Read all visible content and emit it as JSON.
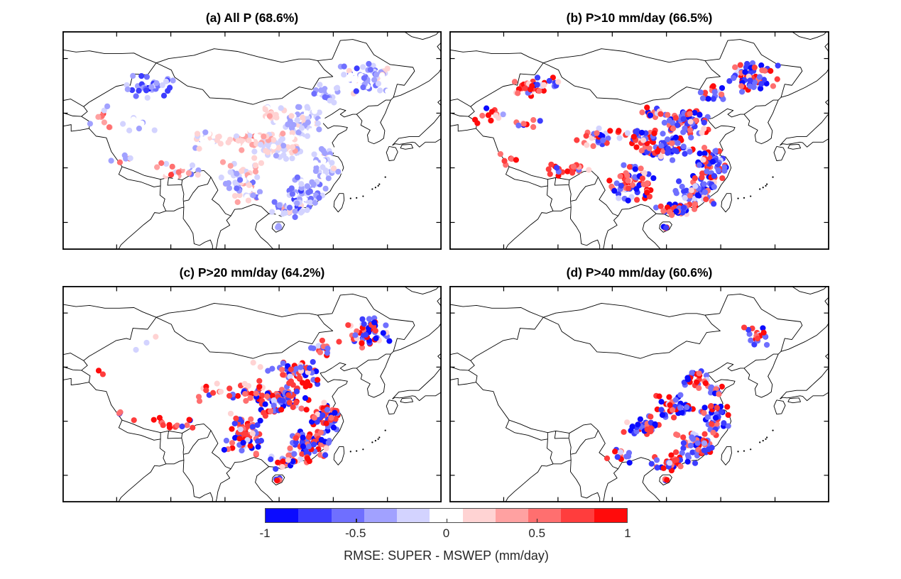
{
  "figure": {
    "background": "#ffffff",
    "frame_color": "#000000",
    "border_line_color": "#000000"
  },
  "chart_data": {
    "type": "scatter",
    "subtype": "map-scatter-2x2-grid",
    "description": "Station-wise RMSE difference (SUPER minus MSWEP) over China for four precipitation intensity classes; blue = SUPER lower RMSE, red = SUPER higher RMSE.",
    "map_extent": {
      "lon_min": 70,
      "lon_max": 140,
      "lat_min": 15,
      "lat_max": 55
    },
    "lon_ticks": [
      80,
      90,
      100,
      110,
      120,
      130
    ],
    "lat_ticks": [
      20,
      30,
      40,
      50
    ],
    "grid": false,
    "seed": 7,
    "dot_radius_px": 4.1,
    "colorbar": {
      "label": "RMSE: SUPER - MSWEP (mm/day)",
      "orientation": "horizontal",
      "range": [
        -1,
        1
      ],
      "ticks": [
        -1,
        -0.5,
        0,
        0.5,
        1
      ],
      "tick_labels": [
        "-1",
        "-0.5",
        "0",
        "0.5",
        "1"
      ],
      "notch_ticks": [
        -0.5,
        0,
        0.5
      ],
      "colors": [
        "#0b0bff",
        "#3d3dff",
        "#6f6fff",
        "#a1a1ff",
        "#d3d3ff",
        "#ffffff",
        "#ffd3d3",
        "#ffa1a1",
        "#ff6f6f",
        "#ff3d3d",
        "#ff0b0b"
      ]
    },
    "panels": [
      {
        "id": "a",
        "title": "(a) All P (68.6%)",
        "threshold": "All P",
        "agreement_pct": 68.6,
        "clusters": [
          {
            "region": "northeast",
            "lon": 126,
            "lat": 46.5,
            "rlon": 5.0,
            "rlat": 3.0,
            "n": 65,
            "mode": "uniform",
            "v": -0.3,
            "s": 0.45
          },
          {
            "region": "inner-mongolia-east",
            "lon": 118.5,
            "lat": 43.5,
            "rlon": 3.5,
            "rlat": 2.0,
            "n": 22,
            "mode": "uniform",
            "v": -0.25,
            "s": 0.35
          },
          {
            "region": "north-china",
            "lon": 114,
            "lat": 38.5,
            "rlon": 4.5,
            "rlat": 2.8,
            "n": 70,
            "mode": "uniform",
            "v": -0.15,
            "s": 0.3
          },
          {
            "region": "central",
            "lon": 110,
            "lat": 33.8,
            "rlon": 5.5,
            "rlat": 2.8,
            "n": 85,
            "mode": "uniform",
            "v": 0.0,
            "s": 0.32
          },
          {
            "region": "east-coast",
            "lon": 118.5,
            "lat": 31,
            "rlon": 3.2,
            "rlat": 3.2,
            "n": 65,
            "mode": "uniform",
            "v": -0.15,
            "s": 0.3
          },
          {
            "region": "southeast",
            "lon": 115.5,
            "lat": 25.8,
            "rlon": 4.3,
            "rlat": 3.2,
            "n": 70,
            "mode": "uniform",
            "v": -0.3,
            "s": 0.38
          },
          {
            "region": "south-coast",
            "lon": 111.5,
            "lat": 22.5,
            "rlon": 4.3,
            "rlat": 1.6,
            "n": 38,
            "mode": "uniform",
            "v": -0.25,
            "s": 0.55
          },
          {
            "region": "southwest",
            "lon": 103.5,
            "lat": 27.5,
            "rlon": 4.3,
            "rlat": 4.0,
            "n": 70,
            "mode": "uniform",
            "v": -0.05,
            "s": 0.45
          },
          {
            "region": "gansu-shaanxi",
            "lon": 104.5,
            "lat": 35.5,
            "rlon": 4.3,
            "rlat": 2.3,
            "n": 40,
            "mode": "uniform",
            "v": 0.15,
            "s": 0.35
          },
          {
            "region": "hetao",
            "lon": 107.5,
            "lat": 40,
            "rlon": 3.2,
            "rlat": 1.7,
            "n": 16,
            "mode": "uniform",
            "v": 0.1,
            "s": 0.3
          },
          {
            "region": "tibet-south",
            "lon": 91.5,
            "lat": 29.5,
            "rlon": 5.5,
            "rlat": 1.7,
            "n": 22,
            "mode": "uniform",
            "v": 0.15,
            "s": 0.65
          },
          {
            "region": "tibet-west",
            "lon": 81,
            "lat": 31.5,
            "rlon": 2.5,
            "rlat": 1.5,
            "n": 6,
            "mode": "uniform",
            "v": 0.1,
            "s": 0.5
          },
          {
            "region": "qinghai",
            "lon": 97,
            "lat": 35.5,
            "rlon": 3.8,
            "rlat": 2.3,
            "n": 26,
            "mode": "uniform",
            "v": 0.0,
            "s": 0.3
          },
          {
            "region": "xinjiang-north",
            "lon": 86,
            "lat": 44.8,
            "rlon": 5.3,
            "rlat": 2.3,
            "n": 38,
            "mode": "uniform",
            "v": -0.45,
            "s": 0.45
          },
          {
            "region": "xinjiang-west",
            "lon": 77.5,
            "lat": 39.5,
            "rlon": 3.2,
            "rlat": 2.3,
            "n": 12,
            "mode": "uniform",
            "v": 0.15,
            "s": 0.6
          },
          {
            "region": "xinjiang-south",
            "lon": 84,
            "lat": 38,
            "rlon": 4.5,
            "rlat": 1.7,
            "n": 10,
            "mode": "uniform",
            "v": -0.15,
            "s": 0.3
          },
          {
            "region": "hainan",
            "lon": 109.8,
            "lat": 19.2,
            "rlon": 0.5,
            "rlat": 0.4,
            "n": 4,
            "mode": "uniform",
            "v": -0.3,
            "s": 0.35
          }
        ]
      },
      {
        "id": "b",
        "title": "(b) P>10 mm/day (66.5%)",
        "threshold": "P>10 mm/day",
        "agreement_pct": 66.5,
        "clusters": [
          {
            "region": "northeast",
            "lon": 126,
            "lat": 46.5,
            "rlon": 5.0,
            "rlat": 3.0,
            "n": 62,
            "mode": "signed",
            "pneg": 0.55,
            "pale": 0.1
          },
          {
            "region": "inner-mongolia-east",
            "lon": 118.5,
            "lat": 43.5,
            "rlon": 3.5,
            "rlat": 2.0,
            "n": 20,
            "mode": "signed",
            "pneg": 0.45,
            "pale": 0.1
          },
          {
            "region": "north-china",
            "lon": 114,
            "lat": 38.5,
            "rlon": 4.5,
            "rlat": 2.8,
            "n": 68,
            "mode": "signed",
            "pneg": 0.6,
            "pale": 0.1
          },
          {
            "region": "central",
            "lon": 110,
            "lat": 33.8,
            "rlon": 5.5,
            "rlat": 2.8,
            "n": 80,
            "mode": "signed",
            "pneg": 0.55,
            "pale": 0.12
          },
          {
            "region": "east-coast",
            "lon": 118.5,
            "lat": 31,
            "rlon": 3.2,
            "rlat": 3.2,
            "n": 62,
            "mode": "signed",
            "pneg": 0.7,
            "pale": 0.08
          },
          {
            "region": "southeast",
            "lon": 115.5,
            "lat": 25.8,
            "rlon": 4.3,
            "rlat": 3.2,
            "n": 68,
            "mode": "signed",
            "pneg": 0.72,
            "pale": 0.08
          },
          {
            "region": "south-coast",
            "lon": 111.5,
            "lat": 22.5,
            "rlon": 4.3,
            "rlat": 1.6,
            "n": 36,
            "mode": "signed",
            "pneg": 0.6,
            "pale": 0.08
          },
          {
            "region": "southwest",
            "lon": 103.5,
            "lat": 27.5,
            "rlon": 4.3,
            "rlat": 4.0,
            "n": 68,
            "mode": "signed",
            "pneg": 0.48,
            "pale": 0.1
          },
          {
            "region": "gansu-shaanxi",
            "lon": 104.5,
            "lat": 35.5,
            "rlon": 4.3,
            "rlat": 2.3,
            "n": 38,
            "mode": "signed",
            "pneg": 0.35,
            "pale": 0.12
          },
          {
            "region": "hetao",
            "lon": 107.5,
            "lat": 40,
            "rlon": 3.2,
            "rlat": 1.7,
            "n": 15,
            "mode": "signed",
            "pneg": 0.3,
            "pale": 0.12
          },
          {
            "region": "tibet-south",
            "lon": 91.5,
            "lat": 29.5,
            "rlon": 5.5,
            "rlat": 1.7,
            "n": 22,
            "mode": "signed",
            "pneg": 0.15,
            "pale": 0.08
          },
          {
            "region": "tibet-west",
            "lon": 81,
            "lat": 31.5,
            "rlon": 2.5,
            "rlat": 1.5,
            "n": 6,
            "mode": "signed",
            "pneg": 0.1,
            "pale": 0.05
          },
          {
            "region": "qinghai",
            "lon": 97,
            "lat": 35.5,
            "rlon": 3.8,
            "rlat": 2.3,
            "n": 24,
            "mode": "signed",
            "pneg": 0.3,
            "pale": 0.15
          },
          {
            "region": "xinjiang-north",
            "lon": 86,
            "lat": 44.8,
            "rlon": 5.3,
            "rlat": 2.3,
            "n": 36,
            "mode": "signed",
            "pneg": 0.25,
            "pale": 0.15
          },
          {
            "region": "xinjiang-west",
            "lon": 77.5,
            "lat": 39.5,
            "rlon": 3.2,
            "rlat": 2.3,
            "n": 12,
            "mode": "signed",
            "pneg": 0.18,
            "pale": 0.1
          },
          {
            "region": "xinjiang-south",
            "lon": 84,
            "lat": 38,
            "rlon": 4.5,
            "rlat": 1.7,
            "n": 9,
            "mode": "signed",
            "pneg": 0.2,
            "pale": 0.15
          },
          {
            "region": "hainan",
            "lon": 109.8,
            "lat": 19.2,
            "rlon": 0.5,
            "rlat": 0.4,
            "n": 4,
            "mode": "signed",
            "pneg": 0.5,
            "pale": 0.1
          }
        ]
      },
      {
        "id": "c",
        "title": "(c) P>20 mm/day (64.2%)",
        "threshold": "P>20 mm/day",
        "agreement_pct": 64.2,
        "clusters": [
          {
            "region": "northeast",
            "lon": 126,
            "lat": 46.5,
            "rlon": 5.0,
            "rlat": 3.0,
            "n": 55,
            "mode": "signed",
            "pneg": 0.52,
            "pale": 0.1
          },
          {
            "region": "inner-mongolia-east",
            "lon": 118.5,
            "lat": 43.5,
            "rlon": 3.5,
            "rlat": 2.0,
            "n": 16,
            "mode": "signed",
            "pneg": 0.45,
            "pale": 0.1
          },
          {
            "region": "north-china",
            "lon": 114,
            "lat": 38.5,
            "rlon": 4.5,
            "rlat": 2.8,
            "n": 60,
            "mode": "signed",
            "pneg": 0.5,
            "pale": 0.1
          },
          {
            "region": "central",
            "lon": 110,
            "lat": 33.8,
            "rlon": 5.5,
            "rlat": 2.8,
            "n": 75,
            "mode": "signed",
            "pneg": 0.48,
            "pale": 0.1
          },
          {
            "region": "east-coast",
            "lon": 118.5,
            "lat": 31,
            "rlon": 3.2,
            "rlat": 3.2,
            "n": 58,
            "mode": "signed",
            "pneg": 0.55,
            "pale": 0.08
          },
          {
            "region": "southeast",
            "lon": 115.5,
            "lat": 25.8,
            "rlon": 4.3,
            "rlat": 3.2,
            "n": 64,
            "mode": "signed",
            "pneg": 0.5,
            "pale": 0.08
          },
          {
            "region": "south-coast",
            "lon": 111.5,
            "lat": 22.5,
            "rlon": 4.3,
            "rlat": 1.6,
            "n": 34,
            "mode": "signed",
            "pneg": 0.45,
            "pale": 0.08
          },
          {
            "region": "southwest",
            "lon": 103.5,
            "lat": 27.5,
            "rlon": 4.3,
            "rlat": 4.0,
            "n": 66,
            "mode": "signed",
            "pneg": 0.35,
            "pale": 0.1
          },
          {
            "region": "gansu-shaanxi",
            "lon": 104.5,
            "lat": 35.5,
            "rlon": 4.3,
            "rlat": 2.3,
            "n": 26,
            "mode": "signed",
            "pneg": 0.28,
            "pale": 0.12
          },
          {
            "region": "hetao",
            "lon": 107.5,
            "lat": 40,
            "rlon": 3.2,
            "rlat": 1.7,
            "n": 6,
            "mode": "signed",
            "pneg": 0.3,
            "pale": 0.15
          },
          {
            "region": "tibet-south",
            "lon": 91.5,
            "lat": 29.5,
            "rlon": 5.5,
            "rlat": 1.7,
            "n": 14,
            "mode": "signed",
            "pneg": 0.08,
            "pale": 0.05
          },
          {
            "region": "tibet-west",
            "lon": 81,
            "lat": 31.5,
            "rlon": 2.5,
            "rlat": 1.5,
            "n": 4,
            "mode": "signed",
            "pneg": 0.1,
            "pale": 0.1
          },
          {
            "region": "qinghai",
            "lon": 97,
            "lat": 35.5,
            "rlon": 3.8,
            "rlat": 2.3,
            "n": 10,
            "mode": "signed",
            "pneg": 0.25,
            "pale": 0.2
          },
          {
            "region": "xinjiang-north",
            "lon": 86,
            "lat": 44.8,
            "rlon": 5.3,
            "rlat": 2.3,
            "n": 3,
            "mode": "signed",
            "pneg": 0.35,
            "pale": 0.6
          },
          {
            "region": "xinjiang-west",
            "lon": 77.5,
            "lat": 39.5,
            "rlon": 3.2,
            "rlat": 2.3,
            "n": 2,
            "mode": "signed",
            "pneg": 0.0,
            "pale": 0.0
          },
          {
            "region": "hainan",
            "lon": 109.8,
            "lat": 19.2,
            "rlon": 0.5,
            "rlat": 0.4,
            "n": 4,
            "mode": "signed",
            "pneg": 0.45,
            "pale": 0.1
          }
        ]
      },
      {
        "id": "d",
        "title": "(d) P>40 mm/day (60.6%)",
        "threshold": "P>40 mm/day",
        "agreement_pct": 60.6,
        "clusters": [
          {
            "region": "northeast",
            "lon": 126.5,
            "lat": 46,
            "rlon": 3.8,
            "rlat": 2.3,
            "n": 18,
            "mode": "signed",
            "pneg": 0.45,
            "pale": 0.1
          },
          {
            "region": "north-china",
            "lon": 115.5,
            "lat": 38,
            "rlon": 3.8,
            "rlat": 2.3,
            "n": 22,
            "mode": "signed",
            "pneg": 0.5,
            "pale": 0.12
          },
          {
            "region": "shandong",
            "lon": 118.5,
            "lat": 36,
            "rlon": 2.8,
            "rlat": 1.5,
            "n": 14,
            "mode": "signed",
            "pneg": 0.55,
            "pale": 0.1
          },
          {
            "region": "central",
            "lon": 111,
            "lat": 32.8,
            "rlon": 4.3,
            "rlat": 2.3,
            "n": 42,
            "mode": "signed",
            "pneg": 0.5,
            "pale": 0.1
          },
          {
            "region": "east-coast",
            "lon": 118.8,
            "lat": 30.8,
            "rlon": 3.0,
            "rlat": 2.8,
            "n": 42,
            "mode": "signed",
            "pneg": 0.55,
            "pale": 0.08
          },
          {
            "region": "southeast",
            "lon": 115.5,
            "lat": 25.5,
            "rlon": 4.3,
            "rlat": 3.0,
            "n": 52,
            "mode": "signed",
            "pneg": 0.5,
            "pale": 0.08
          },
          {
            "region": "south-coast",
            "lon": 111.5,
            "lat": 22.3,
            "rlon": 4.3,
            "rlat": 1.6,
            "n": 32,
            "mode": "signed",
            "pneg": 0.45,
            "pale": 0.08
          },
          {
            "region": "sichuan",
            "lon": 105.5,
            "lat": 29,
            "rlon": 3.8,
            "rlat": 2.3,
            "n": 36,
            "mode": "signed",
            "pneg": 0.45,
            "pale": 0.1
          },
          {
            "region": "yunnan",
            "lon": 101.5,
            "lat": 23.8,
            "rlon": 2.8,
            "rlat": 1.7,
            "n": 12,
            "mode": "signed",
            "pneg": 0.35,
            "pale": 0.1
          },
          {
            "region": "hainan",
            "lon": 109.8,
            "lat": 19.2,
            "rlon": 0.5,
            "rlat": 0.4,
            "n": 3,
            "mode": "signed",
            "pneg": 0.4,
            "pale": 0.1
          }
        ]
      }
    ]
  }
}
